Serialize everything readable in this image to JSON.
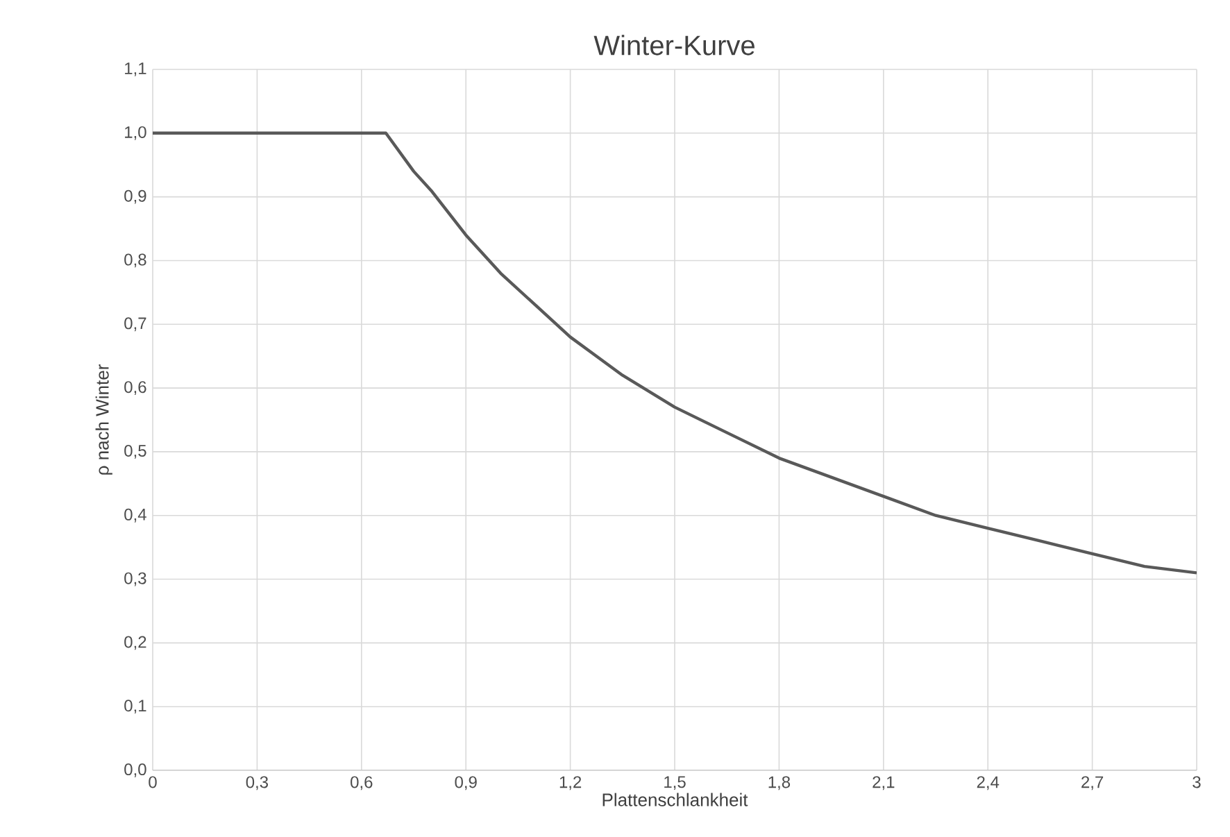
{
  "chart_data": {
    "type": "line",
    "title": "Winter-Kurve",
    "xlabel": "Plattenschlankheit",
    "ylabel": "ρ nach Winter",
    "x": [
      0,
      0.3,
      0.6,
      0.67,
      0.75,
      0.8,
      0.9,
      1.0,
      1.1,
      1.2,
      1.35,
      1.5,
      1.65,
      1.8,
      1.95,
      2.1,
      2.25,
      2.4,
      2.55,
      2.7,
      2.85,
      3.0
    ],
    "series": [
      {
        "color": "#595959",
        "values": [
          1.0,
          1.0,
          1.0,
          1.0,
          0.94,
          0.91,
          0.84,
          0.78,
          0.73,
          0.68,
          0.62,
          0.57,
          0.53,
          0.49,
          0.46,
          0.43,
          0.4,
          0.38,
          0.36,
          0.34,
          0.32,
          0.31
        ]
      }
    ],
    "xlim": [
      0,
      3
    ],
    "ylim": [
      0,
      1.1
    ],
    "xticks": [
      0,
      {
        "value": 0.3,
        "label": "0,3"
      },
      {
        "value": 0.6,
        "label": "0,6"
      },
      {
        "value": 0.9,
        "label": "0,9"
      },
      {
        "value": 1.2,
        "label": "1,2"
      },
      {
        "value": 1.5,
        "label": "1,5"
      },
      {
        "value": 1.8,
        "label": "1,8"
      },
      {
        "value": 2.1,
        "label": "2,1"
      },
      {
        "value": 2.4,
        "label": "2,4"
      },
      {
        "value": 2.7,
        "label": "2,7"
      },
      3
    ],
    "yticks": [
      {
        "value": 0,
        "label": "0,0"
      },
      {
        "value": 0.1,
        "label": "0,1"
      },
      {
        "value": 0.2,
        "label": "0,2"
      },
      {
        "value": 0.3,
        "label": "0,3"
      },
      {
        "value": 0.4,
        "label": "0,4"
      },
      {
        "value": 0.5,
        "label": "0,5"
      },
      {
        "value": 0.6,
        "label": "0,6"
      },
      {
        "value": 0.7,
        "label": "0,7"
      },
      {
        "value": 0.8,
        "label": "0,8"
      },
      {
        "value": 0.9,
        "label": "0,9"
      },
      {
        "value": 1.0,
        "label": "1,0"
      },
      {
        "value": 1.1,
        "label": "1,1"
      }
    ],
    "grid": true,
    "line_style": "solid"
  }
}
